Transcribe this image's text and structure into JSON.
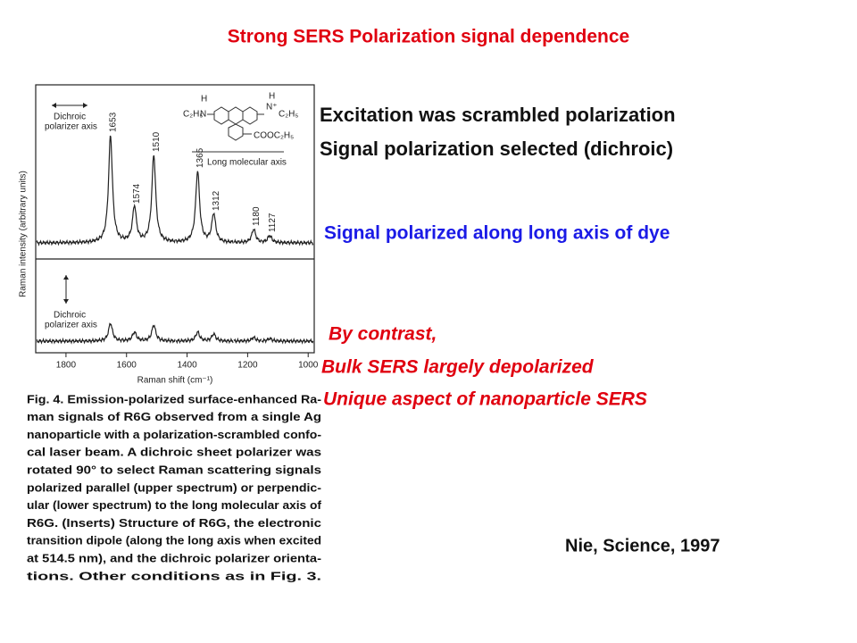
{
  "title": "Strong SERS Polarization signal dependence",
  "notes": [
    "Excitation was scrambled polarization",
    "Signal polarization selected (dichroic)"
  ],
  "highlight": "Signal polarized along long axis of dye",
  "contrast": [
    "By contrast,",
    "Bulk SERS largely depolarized",
    "Unique aspect of nanoparticle SERS"
  ],
  "citation": "Nie, Science, 1997",
  "figure": {
    "type": "spectrum",
    "xlabel": "Raman shift (cm⁻¹)",
    "ylabel": "Raman intensity (arbitrary units)",
    "xlim": [
      1900,
      980
    ],
    "xticks": [
      1800,
      1600,
      1400,
      1200,
      1000
    ],
    "ylim": [
      0,
      130
    ],
    "peaks": [
      1653,
      1574,
      1510,
      1365,
      1312,
      1180,
      1127
    ],
    "spectra": [
      {
        "values": [
          120,
          40,
          98,
          80,
          32,
          15,
          8
        ]
      },
      {
        "values": [
          20,
          10,
          18,
          10,
          8,
          4,
          3
        ]
      }
    ],
    "upper_insert": [
      "Dichroic",
      "polarizer axis"
    ],
    "lower_insert": [
      "Dichroic",
      "polarizer axis"
    ],
    "molecule_axis": "Long molecular axis",
    "chem": [
      "C₂H₅",
      "N",
      "H",
      "N⁺",
      "C₂H₅",
      "H",
      "COOC₂H₅"
    ],
    "caption": [
      "Fig. 4. Emission-polarized surface-enhanced Ra-",
      "man signals of R6G observed from a single Ag",
      "nanoparticle with a polarization-scrambled confo-",
      "cal laser beam. A dichroic sheet polarizer was",
      "rotated 90° to select Raman scattering signals",
      "polarized parallel (upper spectrum) or perpendic-",
      "ular (lower spectrum) to the long molecular axis of",
      "R6G. (Inserts) Structure of R6G, the electronic",
      "transition dipole (along the long axis when excited",
      "at 514.5 nm), and the dichroic polarizer orienta-",
      "tions. Other conditions as in Fig. 3."
    ]
  }
}
